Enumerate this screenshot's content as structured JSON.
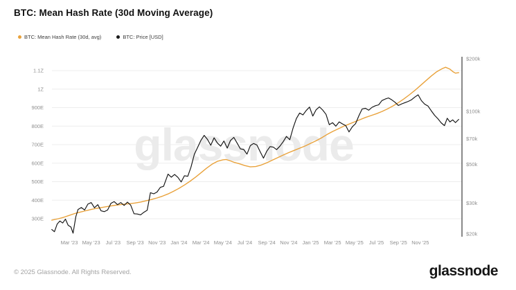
{
  "header": {
    "title": "BTC: Mean Hash Rate (30d Moving Average)"
  },
  "legend": [
    {
      "label": "BTC: Mean Hash Rate (30d, avg)",
      "color": "#E9A23B"
    },
    {
      "label": "BTC: Price [USD]",
      "color": "#1A1A1A"
    }
  ],
  "watermark": "glassnode",
  "footer": {
    "copyright": "© 2025 Glassnode. All Rights Reserved.",
    "brand": "glassnode"
  },
  "chart_data": {
    "type": "line",
    "title": "BTC: Mean Hash Rate (30d Moving Average)",
    "grid": "horizontal-light",
    "legend_position": "top-left",
    "x_axis": {
      "unit": "months (0 = Mar 2023)",
      "tick_months": [
        0,
        2,
        4,
        6,
        8,
        10,
        12,
        14,
        16,
        18,
        20,
        22,
        24,
        26,
        28,
        30,
        32
      ],
      "tick_labels": [
        "Mar '23",
        "May '23",
        "Jul '23",
        "Sep '23",
        "Nov '23",
        "Jan '24",
        "Mar '24",
        "May '24",
        "Jul '24",
        "Sep '24",
        "Nov '24",
        "Jan '25",
        "Mar '25",
        "May '25",
        "Jul '25",
        "Sep '25",
        "Nov '25"
      ]
    },
    "y_left": {
      "series": "Mean Hash Rate",
      "scale": "linear",
      "unit": "EH/s",
      "range": [
        300,
        1150
      ],
      "ticks": [
        {
          "label": "300E",
          "value": 300
        },
        {
          "label": "400E",
          "value": 400
        },
        {
          "label": "500E",
          "value": 500
        },
        {
          "label": "600E",
          "value": 600
        },
        {
          "label": "700E",
          "value": 700
        },
        {
          "label": "800E",
          "value": 800
        },
        {
          "label": "900E",
          "value": 900
        },
        {
          "label": "1Z",
          "value": 1000
        },
        {
          "label": "1.1Z",
          "value": 1100
        }
      ]
    },
    "y_right": {
      "series": "BTC Price",
      "scale": "log",
      "unit": "thousand USD",
      "range": [
        20,
        200
      ],
      "ticks": [
        {
          "label": "$20k",
          "value": 20
        },
        {
          "label": "$30k",
          "value": 30
        },
        {
          "label": "$50k",
          "value": 50
        },
        {
          "label": "$70k",
          "value": 70
        },
        {
          "label": "$100k",
          "value": 100
        },
        {
          "label": "$200k",
          "value": 200
        }
      ]
    },
    "series": [
      {
        "name": "BTC: Mean Hash Rate (30d, avg)",
        "color": "#E9A23B",
        "axis": "left",
        "unit": "EH/s",
        "points": [
          [
            -1.6,
            292
          ],
          [
            -1.0,
            300
          ],
          [
            -0.5,
            308
          ],
          [
            0,
            318
          ],
          [
            0.5,
            328
          ],
          [
            1,
            336
          ],
          [
            1.5,
            343
          ],
          [
            2,
            350
          ],
          [
            2.5,
            356
          ],
          [
            3,
            361
          ],
          [
            3.5,
            366
          ],
          [
            4,
            371
          ],
          [
            4.5,
            375
          ],
          [
            5,
            378
          ],
          [
            5.5,
            381
          ],
          [
            6,
            385
          ],
          [
            6.5,
            390
          ],
          [
            7,
            397
          ],
          [
            7.5,
            404
          ],
          [
            8,
            412
          ],
          [
            8.5,
            422
          ],
          [
            9,
            434
          ],
          [
            9.5,
            448
          ],
          [
            10,
            464
          ],
          [
            10.5,
            482
          ],
          [
            11,
            502
          ],
          [
            11.5,
            524
          ],
          [
            12,
            548
          ],
          [
            12.5,
            572
          ],
          [
            13,
            594
          ],
          [
            13.5,
            610
          ],
          [
            14,
            618
          ],
          [
            14.3,
            620
          ],
          [
            14.7,
            612
          ],
          [
            15,
            605
          ],
          [
            15.5,
            597
          ],
          [
            16,
            587
          ],
          [
            16.5,
            580
          ],
          [
            17,
            582
          ],
          [
            17.5,
            590
          ],
          [
            18,
            602
          ],
          [
            18.5,
            616
          ],
          [
            19,
            630
          ],
          [
            19.5,
            644
          ],
          [
            20,
            657
          ],
          [
            20.5,
            669
          ],
          [
            21,
            681
          ],
          [
            21.5,
            693
          ],
          [
            22,
            707
          ],
          [
            22.5,
            721
          ],
          [
            23,
            737
          ],
          [
            23.5,
            755
          ],
          [
            24,
            771
          ],
          [
            24.5,
            785
          ],
          [
            25,
            799
          ],
          [
            25.5,
            811
          ],
          [
            26,
            823
          ],
          [
            26.5,
            835
          ],
          [
            27,
            847
          ],
          [
            27.5,
            857
          ],
          [
            28,
            867
          ],
          [
            28.5,
            879
          ],
          [
            29,
            893
          ],
          [
            29.5,
            909
          ],
          [
            30,
            927
          ],
          [
            30.5,
            947
          ],
          [
            31,
            969
          ],
          [
            31.5,
            993
          ],
          [
            32,
            1019
          ],
          [
            32.5,
            1045
          ],
          [
            33,
            1071
          ],
          [
            33.5,
            1094
          ],
          [
            34,
            1111
          ],
          [
            34.3,
            1118
          ],
          [
            34.7,
            1108
          ],
          [
            35,
            1093
          ],
          [
            35.2,
            1086
          ],
          [
            35.5,
            1089
          ]
        ]
      },
      {
        "name": "BTC: Price [USD]",
        "color": "#121212",
        "axis": "right",
        "unit": "thousand USD",
        "points": [
          [
            -1.6,
            21.2
          ],
          [
            -1.35,
            20.6
          ],
          [
            -1.1,
            22.8
          ],
          [
            -0.85,
            23.7
          ],
          [
            -0.6,
            23.1
          ],
          [
            -0.35,
            24.3
          ],
          [
            -0.1,
            22.4
          ],
          [
            0.15,
            21.9
          ],
          [
            0.35,
            20.2
          ],
          [
            0.6,
            25.1
          ],
          [
            0.8,
            27.6
          ],
          [
            1.1,
            28.3
          ],
          [
            1.4,
            27.4
          ],
          [
            1.7,
            29.6
          ],
          [
            2,
            30.2
          ],
          [
            2.3,
            28.2
          ],
          [
            2.6,
            29.4
          ],
          [
            2.9,
            27.1
          ],
          [
            3.2,
            26.8
          ],
          [
            3.5,
            27.4
          ],
          [
            3.8,
            29.9
          ],
          [
            4.1,
            30.6
          ],
          [
            4.4,
            29.4
          ],
          [
            4.7,
            30.2
          ],
          [
            5,
            29.1
          ],
          [
            5.3,
            30.4
          ],
          [
            5.6,
            29.2
          ],
          [
            5.9,
            26.1
          ],
          [
            6.2,
            26
          ],
          [
            6.5,
            25.7
          ],
          [
            6.8,
            26.6
          ],
          [
            7.1,
            27.3
          ],
          [
            7.4,
            34.4
          ],
          [
            7.7,
            33.9
          ],
          [
            8,
            34.7
          ],
          [
            8.3,
            36.9
          ],
          [
            8.6,
            37.4
          ],
          [
            9,
            43.9
          ],
          [
            9.3,
            42.2
          ],
          [
            9.6,
            43.7
          ],
          [
            9.9,
            42.1
          ],
          [
            10.2,
            39.6
          ],
          [
            10.5,
            43
          ],
          [
            10.8,
            42.7
          ],
          [
            11.1,
            48.2
          ],
          [
            11.4,
            57
          ],
          [
            11.7,
            62.4
          ],
          [
            12,
            68.5
          ],
          [
            12.3,
            73.1
          ],
          [
            12.6,
            69.3
          ],
          [
            12.9,
            64.2
          ],
          [
            13.2,
            70.8
          ],
          [
            13.5,
            66.1
          ],
          [
            13.8,
            63.4
          ],
          [
            14.1,
            67.9
          ],
          [
            14.4,
            61.8
          ],
          [
            14.7,
            68.4
          ],
          [
            15,
            71.2
          ],
          [
            15.3,
            66
          ],
          [
            15.6,
            61.2
          ],
          [
            15.9,
            60.7
          ],
          [
            16.2,
            57.1
          ],
          [
            16.5,
            63.9
          ],
          [
            16.8,
            65.7
          ],
          [
            17.1,
            64.4
          ],
          [
            17.4,
            59
          ],
          [
            17.7,
            54.2
          ],
          [
            18,
            59.3
          ],
          [
            18.3,
            63.1
          ],
          [
            18.6,
            62.6
          ],
          [
            18.9,
            60.6
          ],
          [
            19.2,
            63.4
          ],
          [
            19.5,
            67.3
          ],
          [
            19.8,
            72.1
          ],
          [
            20.1,
            69
          ],
          [
            20.4,
            80.4
          ],
          [
            20.7,
            91.2
          ],
          [
            21,
            98.1
          ],
          [
            21.3,
            95.7
          ],
          [
            21.6,
            101.3
          ],
          [
            21.9,
            106.1
          ],
          [
            22.2,
            94.2
          ],
          [
            22.5,
            102.4
          ],
          [
            22.8,
            106.3
          ],
          [
            23.1,
            102
          ],
          [
            23.4,
            96.4
          ],
          [
            23.7,
            84.2
          ],
          [
            24,
            86.3
          ],
          [
            24.3,
            82.5
          ],
          [
            24.6,
            87.3
          ],
          [
            24.9,
            85
          ],
          [
            25.2,
            83.1
          ],
          [
            25.5,
            76.5
          ],
          [
            25.8,
            81.8
          ],
          [
            26.1,
            85.3
          ],
          [
            26.4,
            94.7
          ],
          [
            26.7,
            103.5
          ],
          [
            27,
            104.3
          ],
          [
            27.3,
            101.8
          ],
          [
            27.6,
            105.8
          ],
          [
            27.9,
            107.9
          ],
          [
            28.2,
            109.2
          ],
          [
            28.5,
            115.5
          ],
          [
            28.8,
            117.9
          ],
          [
            29.1,
            119.6
          ],
          [
            29.4,
            116.6
          ],
          [
            29.7,
            112.9
          ],
          [
            30,
            108.3
          ],
          [
            30.3,
            110.6
          ],
          [
            30.6,
            112.4
          ],
          [
            30.9,
            114.3
          ],
          [
            31.2,
            116.8
          ],
          [
            31.5,
            121
          ],
          [
            31.8,
            124.6
          ],
          [
            32.1,
            115.3
          ],
          [
            32.4,
            110.2
          ],
          [
            32.7,
            107.4
          ],
          [
            33,
            101
          ],
          [
            33.3,
            95.2
          ],
          [
            33.6,
            91
          ],
          [
            33.9,
            86.2
          ],
          [
            34.2,
            83.1
          ],
          [
            34.45,
            91.5
          ],
          [
            34.7,
            87.3
          ],
          [
            34.95,
            89.6
          ],
          [
            35.2,
            86.5
          ],
          [
            35.5,
            90.2
          ]
        ]
      }
    ]
  }
}
